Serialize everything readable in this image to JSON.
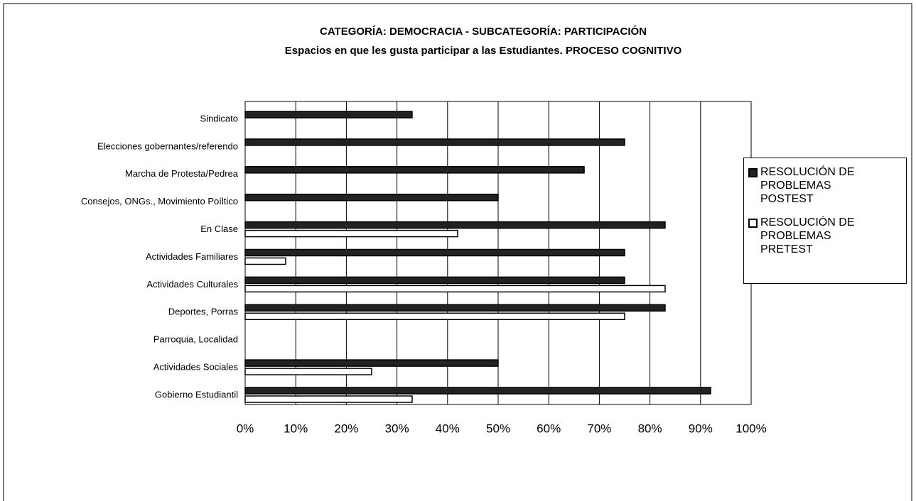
{
  "chart_data": {
    "type": "bar",
    "orientation": "horizontal",
    "title": "CATEGORÍA: DEMOCRACIA - SUBCATEGORÍA: PARTICIPACIÓN",
    "subtitle": "Espacios en que les gusta participar a las Estudiantes. PROCESO COGNITIVO",
    "categories": [
      "Sindicato",
      "Elecciones gobernantes/referendo",
      "Marcha de Protesta/Pedrea",
      "Consejos, ONGs., Movimiento Poíltico",
      "En Clase",
      "Actividades Familiares",
      "Actividades Culturales",
      "Deportes, Porras",
      "Parroquia, Localidad",
      "Actividades Sociales",
      "Gobierno Estudiantil"
    ],
    "series": [
      {
        "name": "RESOLUCIÓN DE PROBLEMAS POSTEST",
        "color": "#222222",
        "values": [
          33,
          75,
          67,
          50,
          83,
          75,
          75,
          83,
          0,
          50,
          92
        ]
      },
      {
        "name": "RESOLUCIÓN DE PROBLEMAS PRETEST",
        "color": "#ffffff",
        "values": [
          0,
          0,
          0,
          0,
          42,
          8,
          83,
          75,
          0,
          25,
          33
        ]
      }
    ],
    "xlim": [
      0,
      100
    ],
    "xticks": [
      {
        "value": 0,
        "label": "0%"
      },
      {
        "value": 10,
        "label": "10%"
      },
      {
        "value": 20,
        "label": "20%"
      },
      {
        "value": 30,
        "label": "30%"
      },
      {
        "value": 40,
        "label": "40%"
      },
      {
        "value": 50,
        "label": "50%"
      },
      {
        "value": 60,
        "label": "60%"
      },
      {
        "value": 70,
        "label": "70%"
      },
      {
        "value": 80,
        "label": "80%"
      },
      {
        "value": 90,
        "label": "90%"
      },
      {
        "value": 100,
        "label": "100%"
      }
    ],
    "grid": true,
    "legend": "right"
  }
}
